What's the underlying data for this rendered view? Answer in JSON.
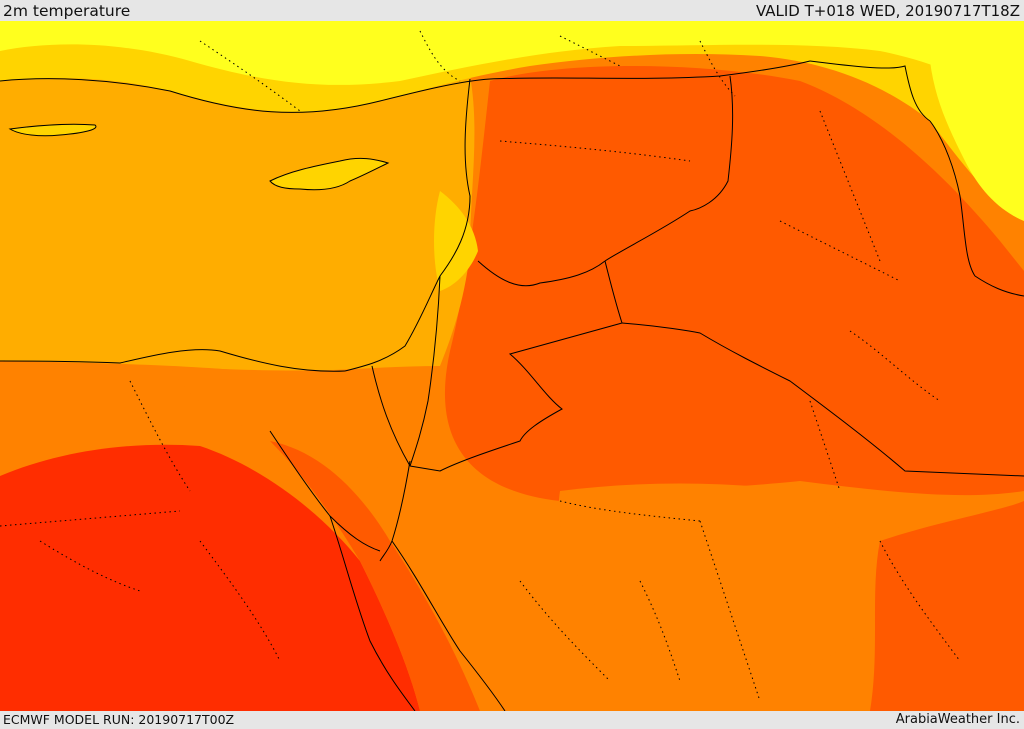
{
  "header": {
    "field_title": "2m temperature",
    "valid_time": "VALID T+018 WED, 20190717T18Z"
  },
  "footer": {
    "model_run": "ECMWF MODEL RUN: 20190717T00Z",
    "credit": "ArabiaWeather Inc."
  },
  "map": {
    "palette": {
      "band_1": "#ffff1e",
      "band_2": "#ffd400",
      "band_3": "#ffad00",
      "band_4": "#ff8200",
      "band_5": "#ff5a00",
      "band_6": "#ff2d00"
    },
    "boundary_color": "#000000"
  }
}
